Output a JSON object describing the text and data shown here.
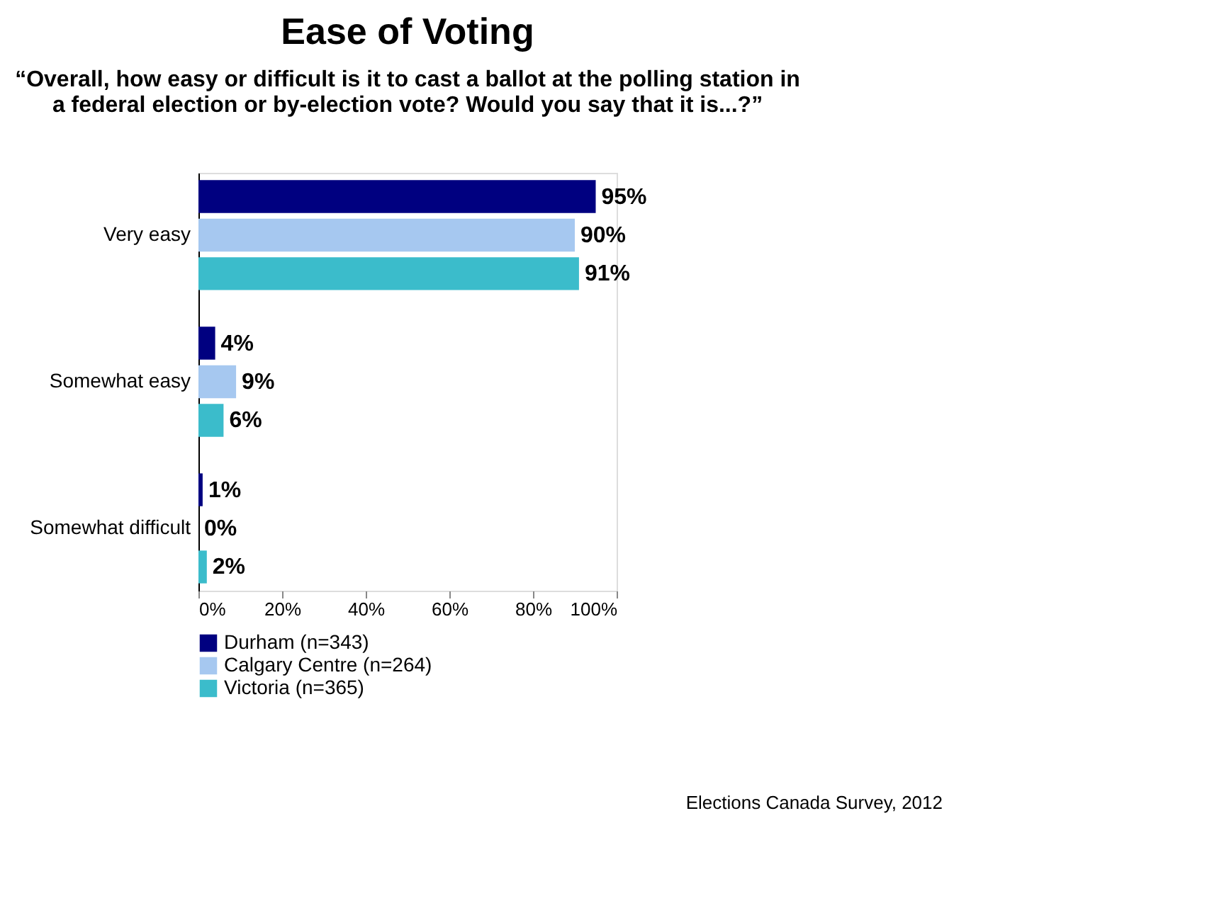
{
  "chart_data": {
    "type": "bar",
    "orientation": "horizontal",
    "title": "Ease of Voting",
    "subtitle": "“Overall, how easy or difficult is it to cast a ballot at the polling station in a federal election  or by-election vote? Would you say that it is...?”",
    "categories": [
      "Very easy",
      "Somewhat easy",
      "Somewhat difficult"
    ],
    "series": [
      {
        "name": "Durham (n=343)",
        "color": "#000080",
        "values": [
          95,
          4,
          1
        ],
        "value_labels": [
          "95%",
          "4%",
          "1%"
        ]
      },
      {
        "name": "Calgary Centre (n=264)",
        "color": "#a6c8f0",
        "values": [
          90,
          9,
          0
        ],
        "value_labels": [
          "90%",
          "9%",
          "0%"
        ]
      },
      {
        "name": "Victoria (n=365)",
        "color": "#3bbccb",
        "values": [
          91,
          6,
          2
        ],
        "value_labels": [
          "91%",
          "6%",
          "2%"
        ]
      }
    ],
    "xlim": [
      0,
      100
    ],
    "xticks": [
      {
        "value": 0,
        "label": "0%"
      },
      {
        "value": 20,
        "label": "20%"
      },
      {
        "value": 40,
        "label": "40%"
      },
      {
        "value": 60,
        "label": "60%"
      },
      {
        "value": 80,
        "label": "80%"
      },
      {
        "value": 100,
        "label": "100%"
      }
    ],
    "legend": "bottom",
    "grid": false,
    "annotations": [
      "Elections Canada Survey, 2012"
    ]
  }
}
